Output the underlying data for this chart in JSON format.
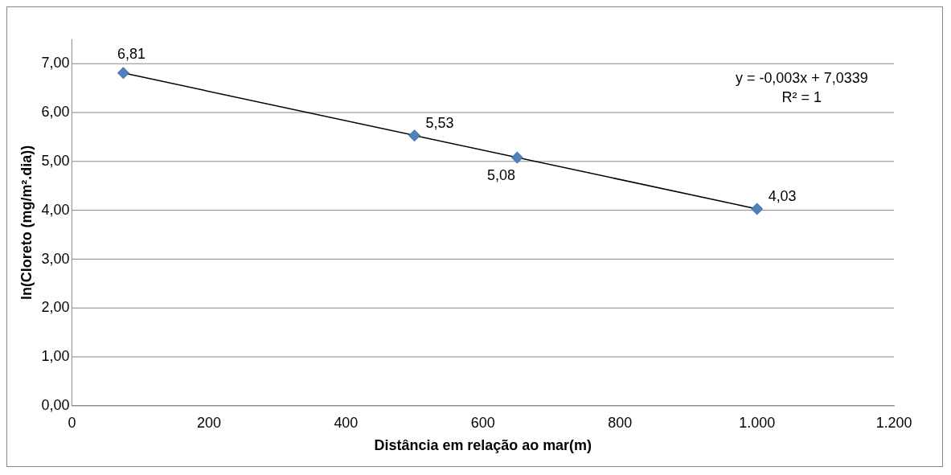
{
  "chart_data": {
    "type": "scatter",
    "xlabel": "Distância em relação ao mar(m)",
    "ylabel": "ln(Cloreto (mg/m².dia))",
    "series": [
      {
        "type": "scatter",
        "color": "#4f81bd",
        "marker": "diamond",
        "x": [
          75,
          500,
          650,
          1000
        ],
        "values": [
          6.81,
          5.53,
          5.08,
          4.03
        ],
        "value_labels": [
          "6,81",
          "5,53",
          "5,08",
          "4,03"
        ]
      },
      {
        "type": "line",
        "color": "#000000",
        "marker": "none",
        "x": [
          75,
          1000
        ],
        "values": [
          6.81,
          4.03
        ]
      }
    ],
    "xlim": [
      0,
      1200
    ],
    "xticks": [
      0,
      200,
      400,
      600,
      800,
      {
        "value": 1000,
        "label": "1.000"
      },
      {
        "value": 1200,
        "label": "1.200"
      }
    ],
    "ylim": [
      0,
      7.5
    ],
    "yticks": [
      {
        "value": 0,
        "label": "0,00"
      },
      {
        "value": 1,
        "label": "1,00"
      },
      {
        "value": 2,
        "label": "2,00"
      },
      {
        "value": 3,
        "label": "3,00"
      },
      {
        "value": 4,
        "label": "4,00"
      },
      {
        "value": 5,
        "label": "5,00"
      },
      {
        "value": 6,
        "label": "6,00"
      },
      {
        "value": 7,
        "label": "7,00"
      }
    ],
    "grid": "y",
    "legend": false,
    "annotations": [
      "y = -0,003x + 7,0339",
      "R² = 1"
    ]
  }
}
